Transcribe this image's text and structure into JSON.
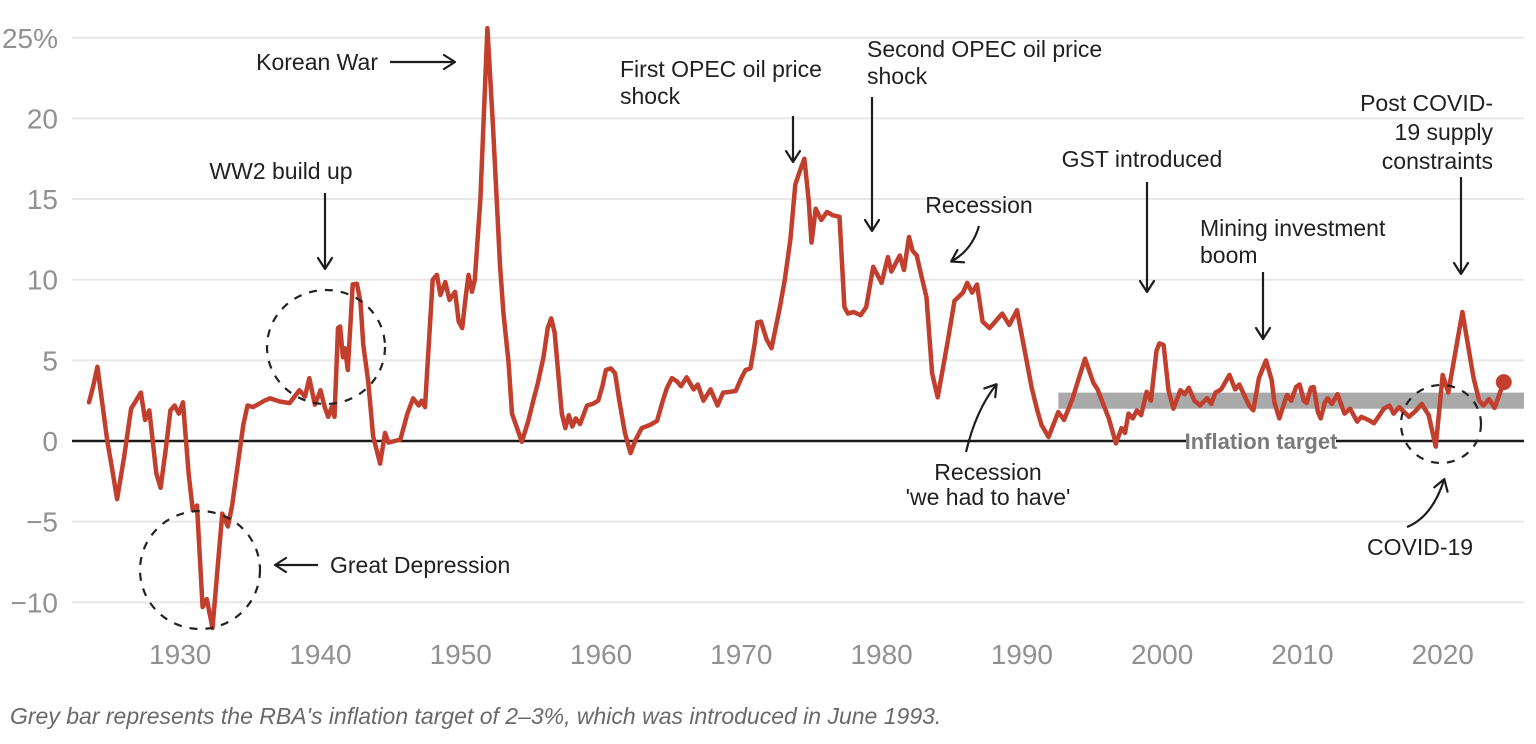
{
  "chart_data": {
    "type": "line",
    "description": "Australian annual inflation rate, 1923 to 2025, with historical event annotations",
    "unit": "%",
    "colors": {
      "line": "#c23e2d",
      "target_band": "#a9a9a9",
      "grid": "#e8e8e8",
      "zero_axis": "#1a1a1a",
      "tick_text": "#919191",
      "annotation_text": "#212121",
      "annotation_arrow": "#1d1d1d",
      "target_label_text": "#7a7a7a",
      "footnote_text": "#696969",
      "background": "#ffffff"
    },
    "y_axis": {
      "ticks": [
        {
          "value": 25,
          "label": "25%"
        },
        {
          "value": 20,
          "label": "20"
        },
        {
          "value": 15,
          "label": "15"
        },
        {
          "value": 10,
          "label": "10"
        },
        {
          "value": 5,
          "label": "5"
        },
        {
          "value": 0,
          "label": "0"
        },
        {
          "value": -5,
          "label": "−5"
        },
        {
          "value": -10,
          "label": "−10"
        }
      ],
      "ylim": [
        -12.8,
        26.5
      ],
      "grid": true
    },
    "x_axis": {
      "ticks": [
        {
          "value": 1930,
          "label": "1930"
        },
        {
          "value": 1940,
          "label": "1940"
        },
        {
          "value": 1950,
          "label": "1950"
        },
        {
          "value": 1960,
          "label": "1960"
        },
        {
          "value": 1970,
          "label": "1970"
        },
        {
          "value": 1980,
          "label": "1980"
        },
        {
          "value": 1990,
          "label": "1990"
        },
        {
          "value": 2000,
          "label": "2000"
        },
        {
          "value": 2010,
          "label": "2010"
        },
        {
          "value": 2020,
          "label": "2020"
        }
      ],
      "xlim": [
        1922.3,
        2025.8
      ]
    },
    "target_band": {
      "label": "Inflation target",
      "from_year": 1992.6,
      "to_year": 2025.8,
      "value_low": 2,
      "value_high": 3
    },
    "series": {
      "points": [
        [
          1923.5,
          2.4
        ],
        [
          1923.8,
          3.4
        ],
        [
          1924.1,
          4.6
        ],
        [
          1924.5,
          2.0
        ],
        [
          1924.8,
          0.0
        ],
        [
          1925.1,
          -1.5
        ],
        [
          1925.5,
          -3.6
        ],
        [
          1926.0,
          -1.0
        ],
        [
          1926.5,
          2.0
        ],
        [
          1927.2,
          3.0
        ],
        [
          1927.5,
          1.3
        ],
        [
          1927.8,
          1.9
        ],
        [
          1928.3,
          -2.0
        ],
        [
          1928.6,
          -2.9
        ],
        [
          1929.0,
          -0.3
        ],
        [
          1929.3,
          1.9
        ],
        [
          1929.6,
          2.2
        ],
        [
          1929.9,
          1.7
        ],
        [
          1930.2,
          2.4
        ],
        [
          1930.6,
          -2.0
        ],
        [
          1930.9,
          -4.3
        ],
        [
          1931.2,
          -4.0
        ],
        [
          1931.6,
          -10.3
        ],
        [
          1931.9,
          -9.8
        ],
        [
          1932.3,
          -11.6
        ],
        [
          1932.7,
          -7.5
        ],
        [
          1933.0,
          -4.5
        ],
        [
          1933.4,
          -5.3
        ],
        [
          1933.7,
          -4.0
        ],
        [
          1934.1,
          -1.5
        ],
        [
          1934.5,
          1.0
        ],
        [
          1934.8,
          2.2
        ],
        [
          1935.2,
          2.1
        ],
        [
          1935.6,
          2.3
        ],
        [
          1936.0,
          2.5
        ],
        [
          1936.4,
          2.65
        ],
        [
          1937.1,
          2.45
        ],
        [
          1937.8,
          2.35
        ],
        [
          1938.5,
          3.15
        ],
        [
          1938.9,
          2.75
        ],
        [
          1939.2,
          3.9
        ],
        [
          1939.6,
          2.25
        ],
        [
          1940.0,
          3.15
        ],
        [
          1940.3,
          2.1
        ],
        [
          1940.55,
          1.5
        ],
        [
          1940.8,
          2.1
        ],
        [
          1941.0,
          1.5
        ],
        [
          1941.25,
          7.0
        ],
        [
          1941.4,
          7.1
        ],
        [
          1941.6,
          5.2
        ],
        [
          1941.75,
          5.75
        ],
        [
          1941.95,
          4.4
        ],
        [
          1942.3,
          9.7
        ],
        [
          1942.6,
          9.75
        ],
        [
          1942.85,
          8.6
        ],
        [
          1943.05,
          5.95
        ],
        [
          1943.4,
          3.7
        ],
        [
          1943.75,
          0.3
        ],
        [
          1944.25,
          -1.4
        ],
        [
          1944.6,
          0.5
        ],
        [
          1944.85,
          -0.1
        ],
        [
          1945.3,
          0.0
        ],
        [
          1945.7,
          0.1
        ],
        [
          1946.2,
          1.7
        ],
        [
          1946.6,
          2.65
        ],
        [
          1947.0,
          2.2
        ],
        [
          1947.2,
          2.5
        ],
        [
          1947.45,
          2.1
        ],
        [
          1948.0,
          10.0
        ],
        [
          1948.3,
          10.3
        ],
        [
          1948.55,
          9.05
        ],
        [
          1948.9,
          9.85
        ],
        [
          1949.2,
          8.75
        ],
        [
          1949.6,
          9.25
        ],
        [
          1949.85,
          7.4
        ],
        [
          1950.1,
          7.0
        ],
        [
          1950.35,
          8.95
        ],
        [
          1950.55,
          10.3
        ],
        [
          1950.8,
          9.25
        ],
        [
          1951.0,
          10.0
        ],
        [
          1951.4,
          15.0
        ],
        [
          1951.9,
          25.6
        ],
        [
          1952.3,
          19.5
        ],
        [
          1952.8,
          10.9
        ],
        [
          1953.05,
          7.9
        ],
        [
          1953.4,
          4.9
        ],
        [
          1953.65,
          1.7
        ],
        [
          1954.35,
          -0.05
        ],
        [
          1954.8,
          1.2
        ],
        [
          1955.2,
          2.6
        ],
        [
          1955.5,
          3.6
        ],
        [
          1955.9,
          5.2
        ],
        [
          1956.2,
          7.0
        ],
        [
          1956.45,
          7.6
        ],
        [
          1956.7,
          6.7
        ],
        [
          1957.2,
          1.7
        ],
        [
          1957.45,
          0.8
        ],
        [
          1957.7,
          1.6
        ],
        [
          1957.95,
          0.9
        ],
        [
          1958.2,
          1.4
        ],
        [
          1958.5,
          1.05
        ],
        [
          1959.0,
          2.2
        ],
        [
          1959.4,
          2.3
        ],
        [
          1959.8,
          2.5
        ],
        [
          1960.1,
          3.4
        ],
        [
          1960.35,
          4.4
        ],
        [
          1960.7,
          4.5
        ],
        [
          1961.0,
          4.2
        ],
        [
          1961.3,
          2.5
        ],
        [
          1961.7,
          0.5
        ],
        [
          1962.1,
          -0.75
        ],
        [
          1962.45,
          0.05
        ],
        [
          1962.9,
          0.8
        ],
        [
          1963.2,
          0.9
        ],
        [
          1963.5,
          1.0
        ],
        [
          1964.0,
          1.25
        ],
        [
          1964.4,
          2.5
        ],
        [
          1964.7,
          3.3
        ],
        [
          1965.05,
          3.9
        ],
        [
          1965.4,
          3.7
        ],
        [
          1965.7,
          3.4
        ],
        [
          1966.1,
          3.95
        ],
        [
          1966.6,
          3.2
        ],
        [
          1966.9,
          3.5
        ],
        [
          1967.3,
          2.5
        ],
        [
          1967.8,
          3.2
        ],
        [
          1968.3,
          2.2
        ],
        [
          1968.7,
          3.0
        ],
        [
          1969.2,
          3.05
        ],
        [
          1969.6,
          3.1
        ],
        [
          1970.0,
          3.9
        ],
        [
          1970.3,
          4.4
        ],
        [
          1970.65,
          4.5
        ],
        [
          1970.95,
          6.0
        ],
        [
          1971.15,
          7.35
        ],
        [
          1971.4,
          7.4
        ],
        [
          1971.8,
          6.3
        ],
        [
          1972.15,
          5.75
        ],
        [
          1972.75,
          8.3
        ],
        [
          1973.1,
          10.0
        ],
        [
          1973.5,
          12.5
        ],
        [
          1973.85,
          15.9
        ],
        [
          1974.2,
          16.8
        ],
        [
          1974.5,
          17.5
        ],
        [
          1974.8,
          14.9
        ],
        [
          1975.0,
          12.3
        ],
        [
          1975.3,
          14.4
        ],
        [
          1975.7,
          13.7
        ],
        [
          1976.1,
          14.2
        ],
        [
          1976.5,
          14.0
        ],
        [
          1977.0,
          13.9
        ],
        [
          1977.35,
          8.3
        ],
        [
          1977.6,
          7.9
        ],
        [
          1978.0,
          8.0
        ],
        [
          1978.5,
          7.8
        ],
        [
          1978.9,
          8.3
        ],
        [
          1979.4,
          10.8
        ],
        [
          1980.0,
          9.8
        ],
        [
          1980.45,
          11.4
        ],
        [
          1980.7,
          10.5
        ],
        [
          1981.3,
          11.5
        ],
        [
          1981.6,
          10.6
        ],
        [
          1981.95,
          12.65
        ],
        [
          1982.2,
          11.8
        ],
        [
          1982.5,
          11.5
        ],
        [
          1982.9,
          10.0
        ],
        [
          1983.2,
          8.9
        ],
        [
          1983.6,
          4.2
        ],
        [
          1984.0,
          2.7
        ],
        [
          1984.7,
          6.1
        ],
        [
          1985.2,
          8.7
        ],
        [
          1985.8,
          9.2
        ],
        [
          1986.1,
          9.8
        ],
        [
          1986.45,
          9.2
        ],
        [
          1986.8,
          9.7
        ],
        [
          1987.2,
          7.4
        ],
        [
          1987.7,
          7.0
        ],
        [
          1988.2,
          7.5
        ],
        [
          1988.6,
          7.9
        ],
        [
          1989.1,
          7.2
        ],
        [
          1989.65,
          8.1
        ],
        [
          1990.2,
          5.6
        ],
        [
          1990.7,
          3.3
        ],
        [
          1991.1,
          1.9
        ],
        [
          1991.4,
          1.0
        ],
        [
          1991.9,
          0.25
        ],
        [
          1992.6,
          1.8
        ],
        [
          1993.0,
          1.3
        ],
        [
          1993.6,
          2.6
        ],
        [
          1994.1,
          4.0
        ],
        [
          1994.5,
          5.1
        ],
        [
          1995.1,
          3.6
        ],
        [
          1995.4,
          3.2
        ],
        [
          1996.2,
          1.4
        ],
        [
          1996.7,
          -0.15
        ],
        [
          1997.1,
          0.8
        ],
        [
          1997.35,
          0.5
        ],
        [
          1997.6,
          1.7
        ],
        [
          1997.9,
          1.4
        ],
        [
          1998.2,
          1.9
        ],
        [
          1998.5,
          1.6
        ],
        [
          1998.9,
          3.05
        ],
        [
          1999.2,
          2.5
        ],
        [
          1999.6,
          5.6
        ],
        [
          1999.8,
          6.05
        ],
        [
          2000.1,
          5.95
        ],
        [
          2000.45,
          3.15
        ],
        [
          2000.8,
          2.0
        ],
        [
          2001.3,
          3.15
        ],
        [
          2001.6,
          2.9
        ],
        [
          2001.9,
          3.3
        ],
        [
          2002.3,
          2.5
        ],
        [
          2002.7,
          2.2
        ],
        [
          2003.2,
          2.65
        ],
        [
          2003.5,
          2.3
        ],
        [
          2003.8,
          3.0
        ],
        [
          2004.2,
          3.2
        ],
        [
          2004.8,
          4.1
        ],
        [
          2005.2,
          3.2
        ],
        [
          2005.5,
          3.5
        ],
        [
          2006.2,
          2.2
        ],
        [
          2006.5,
          1.9
        ],
        [
          2006.9,
          3.9
        ],
        [
          2007.4,
          5.0
        ],
        [
          2007.8,
          3.8
        ],
        [
          2008.0,
          2.4
        ],
        [
          2008.35,
          1.4
        ],
        [
          2008.7,
          2.35
        ],
        [
          2008.9,
          2.85
        ],
        [
          2009.2,
          2.5
        ],
        [
          2009.55,
          3.35
        ],
        [
          2009.8,
          3.5
        ],
        [
          2010.1,
          2.5
        ],
        [
          2010.3,
          2.35
        ],
        [
          2010.6,
          3.3
        ],
        [
          2010.8,
          3.35
        ],
        [
          2011.1,
          1.8
        ],
        [
          2011.3,
          1.4
        ],
        [
          2011.6,
          2.4
        ],
        [
          2011.8,
          2.65
        ],
        [
          2012.1,
          2.3
        ],
        [
          2012.5,
          2.9
        ],
        [
          2013.0,
          1.7
        ],
        [
          2013.4,
          2.0
        ],
        [
          2013.9,
          1.2
        ],
        [
          2014.2,
          1.5
        ],
        [
          2014.7,
          1.3
        ],
        [
          2015.1,
          1.1
        ],
        [
          2015.8,
          2.0
        ],
        [
          2016.2,
          2.2
        ],
        [
          2016.5,
          1.7
        ],
        [
          2016.9,
          2.1
        ],
        [
          2017.6,
          1.5
        ],
        [
          2018.1,
          1.9
        ],
        [
          2018.5,
          2.3
        ],
        [
          2019.0,
          1.6
        ],
        [
          2019.5,
          -0.35
        ],
        [
          2020.0,
          4.1
        ],
        [
          2020.4,
          3.0
        ],
        [
          2021.4,
          8.0
        ],
        [
          2022.2,
          3.9
        ],
        [
          2022.6,
          2.5
        ],
        [
          2022.9,
          2.2
        ],
        [
          2023.3,
          2.6
        ],
        [
          2023.7,
          2.05
        ],
        [
          2024.35,
          3.65
        ]
      ],
      "end_point_marker": true
    },
    "annotations": [
      {
        "id": "korean-war",
        "lines": [
          "Korean War"
        ]
      },
      {
        "id": "ww2-build-up",
        "lines": [
          "WW2 build up"
        ]
      },
      {
        "id": "first-opec",
        "lines": [
          "First OPEC oil price",
          "shock"
        ]
      },
      {
        "id": "second-opec",
        "lines": [
          "Second OPEC oil price",
          "shock"
        ]
      },
      {
        "id": "recession-1980s",
        "lines": [
          "Recession"
        ]
      },
      {
        "id": "gst-introduced",
        "lines": [
          "GST introduced"
        ]
      },
      {
        "id": "mining-boom",
        "lines": [
          "Mining investment",
          "boom"
        ]
      },
      {
        "id": "post-covid",
        "lines": [
          "Post COVID-",
          "19 supply",
          "constraints"
        ]
      },
      {
        "id": "recession-we-had-to-have",
        "lines": [
          "Recession",
          "'we had to have'"
        ]
      },
      {
        "id": "great-depression",
        "lines": [
          "Great Depression"
        ]
      },
      {
        "id": "covid-19",
        "lines": [
          "COVID-19"
        ]
      }
    ],
    "footnote": "Grey bar represents the RBA's inflation target of 2–3%, which was introduced in June 1993."
  }
}
